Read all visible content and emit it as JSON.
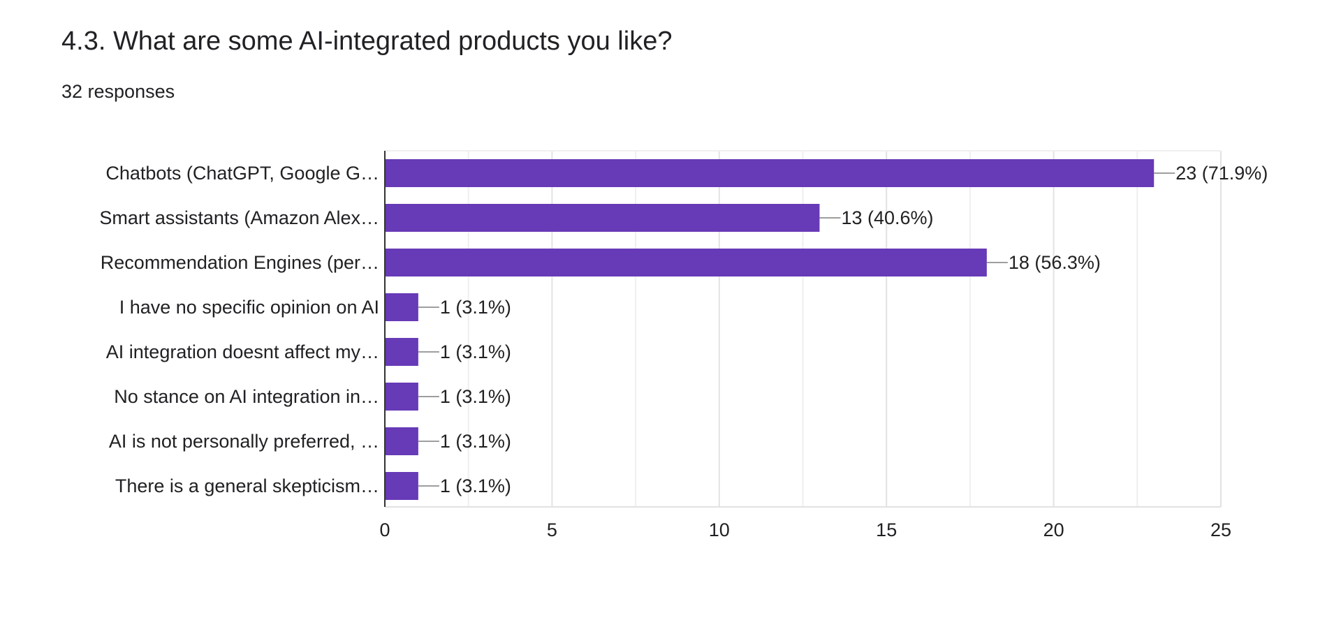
{
  "header": {
    "title": "4.3. What are some AI-integrated products you like?",
    "responses": "32 responses"
  },
  "colors": {
    "bar": "#673ab7",
    "grid": "#e6e6e6",
    "axis": "#333333",
    "leader": "#9e9e9e"
  },
  "chart_data": {
    "type": "bar",
    "orientation": "horizontal",
    "title": "4.3. What are some AI-integrated products you like?",
    "subtitle": "32 responses",
    "categories": [
      "Chatbots (ChatGPT, Google G…",
      "Smart assistants (Amazon Alex…",
      "Recommendation Engines (per…",
      "I have no specific opinion on AI",
      "AI integration doesnt affect my…",
      "No stance on AI integration in…",
      "AI is not personally preferred, …",
      "There is a general skepticism…"
    ],
    "values": [
      23,
      13,
      18,
      1,
      1,
      1,
      1,
      1
    ],
    "data_labels": [
      "23 (71.9%)",
      "13 (40.6%)",
      "18 (56.3%)",
      "1 (3.1%)",
      "1 (3.1%)",
      "1 (3.1%)",
      "1 (3.1%)",
      "1 (3.1%)"
    ],
    "x_ticks": [
      0,
      5,
      10,
      15,
      20,
      25
    ],
    "xlim": [
      0,
      25
    ],
    "xlabel": "",
    "ylabel": "",
    "grid": true,
    "legend": "none"
  }
}
